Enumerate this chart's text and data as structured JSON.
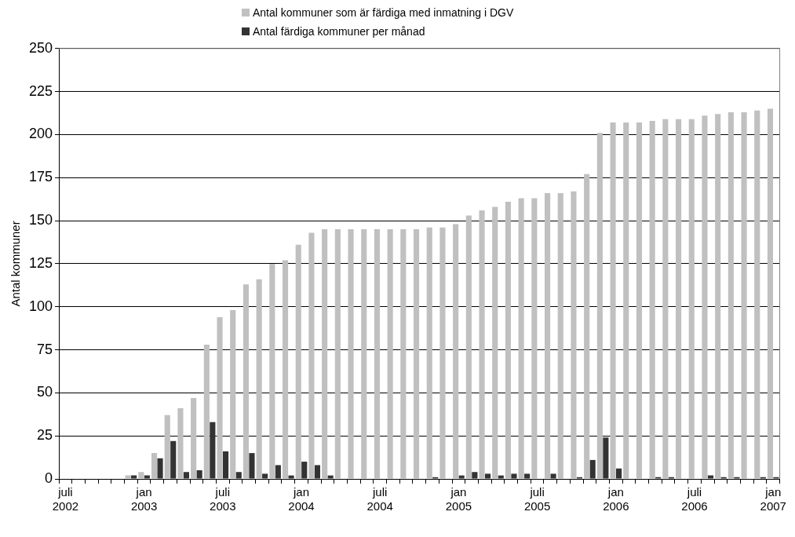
{
  "chart_data": {
    "type": "bar",
    "ylabel": "Antal kommuner",
    "categories": [
      "juli 2002",
      null,
      null,
      null,
      null,
      null,
      "jan 2003",
      null,
      null,
      null,
      null,
      null,
      "juli 2003",
      null,
      null,
      null,
      null,
      null,
      "jan 2004",
      null,
      null,
      null,
      null,
      null,
      "juli 2004",
      null,
      null,
      null,
      null,
      null,
      "jan 2005",
      null,
      null,
      null,
      null,
      null,
      "juli 2005",
      null,
      null,
      null,
      null,
      null,
      "jan 2006",
      null,
      null,
      null,
      null,
      null,
      "juli 2006",
      null,
      null,
      null,
      null,
      null,
      "jan 2007"
    ],
    "series": [
      {
        "name": "Antal kommuner som är färdiga med inmatning i DGV",
        "color": "#c0c0c0",
        "values": [
          0,
          0,
          0,
          0,
          0,
          2,
          4,
          15,
          37,
          41,
          47,
          78,
          94,
          98,
          113,
          116,
          125,
          127,
          136,
          143,
          145,
          145,
          145,
          145,
          145,
          145,
          145,
          145,
          146,
          146,
          148,
          153,
          156,
          158,
          161,
          163,
          163,
          166,
          166,
          167,
          177,
          201,
          207,
          207,
          207,
          208,
          209,
          209,
          209,
          211,
          212,
          213,
          213,
          214,
          215
        ]
      },
      {
        "name": "Antal färdiga kommuner per månad",
        "color": "#333333",
        "values": [
          0,
          0,
          0,
          0,
          0,
          2,
          2,
          12,
          22,
          4,
          5,
          33,
          16,
          4,
          15,
          3,
          8,
          2,
          10,
          8,
          2,
          0,
          0,
          0,
          0,
          0,
          0,
          0,
          1,
          0,
          2,
          4,
          3,
          2,
          3,
          3,
          0,
          3,
          0,
          1,
          11,
          24,
          6,
          0,
          0,
          1,
          1,
          0,
          0,
          2,
          1,
          1,
          0,
          1,
          1
        ]
      }
    ],
    "ylim": [
      0,
      250
    ],
    "yticks": [
      0,
      25,
      50,
      75,
      100,
      125,
      150,
      175,
      200,
      225,
      250
    ],
    "grid": "y",
    "legend": "top"
  }
}
